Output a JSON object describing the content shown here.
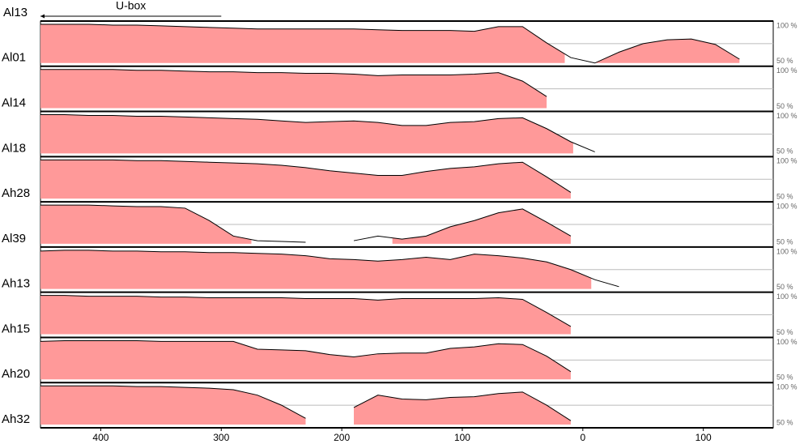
{
  "chart_data": {
    "type": "area",
    "top_label": "Al13",
    "annotation": {
      "text": "U-box",
      "x_start": 450,
      "x_end": 300
    },
    "x": [
      450,
      430,
      410,
      390,
      370,
      350,
      330,
      310,
      290,
      270,
      250,
      230,
      210,
      190,
      170,
      150,
      130,
      110,
      90,
      70,
      50,
      30,
      10,
      -10,
      -30,
      -50,
      -70,
      -90,
      -110,
      -130,
      -150
    ],
    "xlim": [
      450,
      -158
    ],
    "xticks": [
      400,
      300,
      200,
      100,
      0,
      {
        "value": -100,
        "label": "100"
      }
    ],
    "ylim": [
      50,
      100
    ],
    "yticks": [
      {
        "value": 100,
        "label": "100 %"
      },
      {
        "value": 50,
        "label": "50 %"
      }
    ],
    "grid_lines": [
      75
    ],
    "fill_color": "#ff9999",
    "line_color": "#000000",
    "panels": [
      {
        "name": "Al01",
        "values": [
          100,
          100,
          100,
          99,
          99,
          98,
          97,
          96,
          95,
          94,
          94,
          94,
          94,
          94,
          93,
          92,
          92,
          92,
          91,
          97,
          97,
          76,
          57,
          50,
          64,
          75,
          80,
          81,
          74,
          55,
          null
        ],
        "conserved": [
          [
            450,
            15
          ],
          [
            -10,
            -137
          ]
        ]
      },
      {
        "name": "Al14",
        "values": [
          100,
          100,
          100,
          100,
          99,
          99,
          98,
          97,
          97,
          96,
          96,
          95,
          95,
          94,
          92,
          93,
          93,
          93,
          94,
          96,
          85,
          65,
          null,
          null,
          null,
          null,
          null,
          null,
          null,
          null,
          null
        ],
        "conserved": [
          [
            450,
            19
          ]
        ]
      },
      {
        "name": "Al18",
        "values": [
          100,
          100,
          99,
          99,
          98,
          98,
          97,
          96,
          95,
          94,
          92,
          90,
          91,
          92,
          90,
          86,
          86,
          90,
          91,
          95,
          96,
          82,
          65,
          52,
          null,
          null,
          null,
          null,
          null,
          null,
          null
        ],
        "conserved": [
          [
            450,
            8
          ]
        ]
      },
      {
        "name": "Ah28",
        "values": [
          100,
          100,
          100,
          100,
          99,
          99,
          98,
          97,
          96,
          95,
          93,
          90,
          86,
          83,
          80,
          80,
          85,
          89,
          91,
          95,
          97,
          78,
          58,
          null,
          null,
          null,
          null,
          null,
          null,
          null,
          null
        ],
        "conserved": [
          [
            450,
            8
          ]
        ]
      },
      {
        "name": "Al39",
        "values": [
          100,
          100,
          100,
          99,
          98,
          98,
          96,
          80,
          60,
          54,
          53,
          52,
          null,
          54,
          60,
          56,
          60,
          72,
          80,
          90,
          95,
          78,
          60,
          null,
          null,
          null,
          null,
          null,
          null,
          null,
          null
        ],
        "conserved": [
          [
            450,
            275
          ],
          [
            158,
            0
          ]
        ]
      },
      {
        "name": "Ah13",
        "values": [
          99,
          100,
          100,
          99,
          99,
          98,
          98,
          97,
          97,
          96,
          95,
          93,
          89,
          88,
          86,
          88,
          91,
          88,
          95,
          93,
          90,
          85,
          75,
          62,
          53,
          null,
          null,
          null,
          null,
          null,
          null
        ],
        "conserved": [
          [
            450,
            -7
          ]
        ]
      },
      {
        "name": "Ah15",
        "values": [
          100,
          100,
          99,
          99,
          99,
          98,
          98,
          97,
          97,
          97,
          97,
          96,
          96,
          96,
          94,
          96,
          96,
          96,
          96,
          97,
          95,
          78,
          60,
          null,
          null,
          null,
          null,
          null,
          null,
          null,
          null
        ],
        "conserved": [
          [
            450,
            8
          ]
        ]
      },
      {
        "name": "Ah20",
        "values": [
          99,
          100,
          100,
          100,
          100,
          99,
          99,
          99,
          99,
          89,
          88,
          87,
          82,
          79,
          83,
          84,
          84,
          90,
          92,
          96,
          95,
          80,
          60,
          null,
          null,
          null,
          null,
          null,
          null,
          null,
          null
        ],
        "conserved": [
          [
            450,
            5
          ]
        ]
      },
      {
        "name": "Ah32",
        "values": [
          100,
          100,
          100,
          100,
          99,
          99,
          98,
          97,
          95,
          88,
          75,
          58,
          null,
          72,
          88,
          83,
          82,
          85,
          86,
          90,
          92,
          75,
          55,
          null,
          null,
          null,
          null,
          null,
          null,
          null,
          null
        ],
        "conserved": [
          [
            450,
            218
          ],
          [
            200,
            5
          ]
        ]
      }
    ]
  }
}
